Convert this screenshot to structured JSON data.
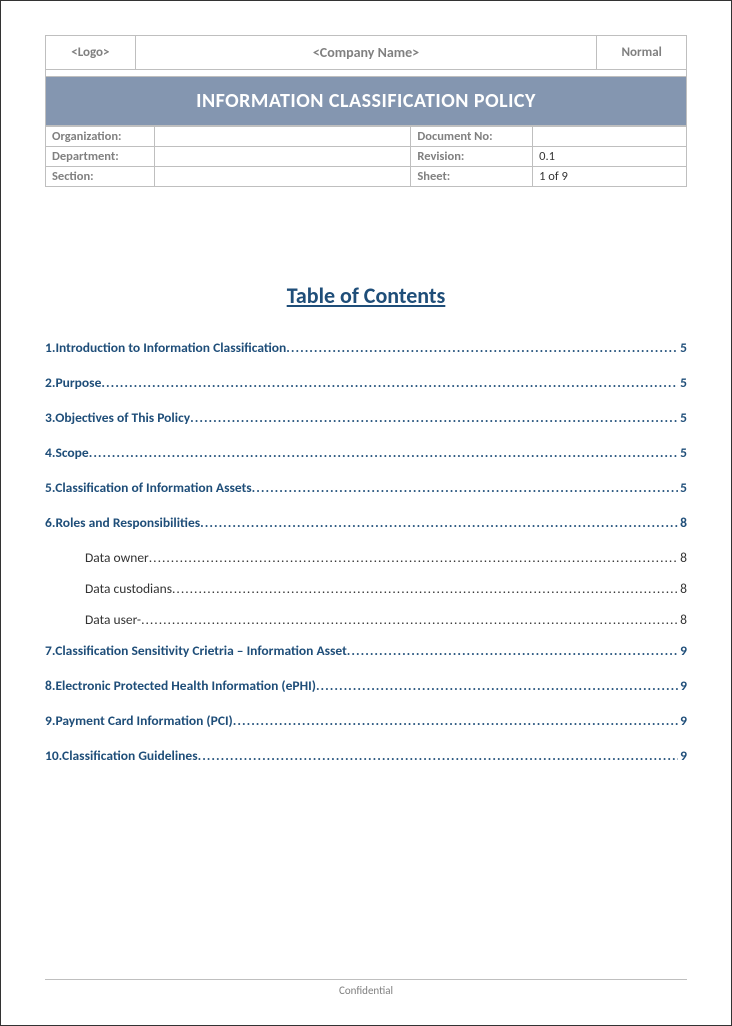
{
  "header": {
    "logo": "<Logo>",
    "company": "<Company Name>",
    "mode": "Normal",
    "title": "INFORMATION CLASSIFICATION POLICY"
  },
  "meta": {
    "org_label": "Organization:",
    "org_value": "",
    "docno_label": "Document No:",
    "docno_value": "",
    "dept_label": "Department:",
    "dept_value": "",
    "rev_label": "Revision:",
    "rev_value": "0.1",
    "section_label": "Section:",
    "section_value": "",
    "sheet_label": "Sheet:",
    "sheet_value": "1 of 9"
  },
  "toc_heading": "Table of Contents",
  "toc": [
    {
      "num": "1.",
      "title": "Introduction to Information Classification",
      "page": "5",
      "sub": false
    },
    {
      "num": "2.",
      "title": "Purpose",
      "page": "5",
      "sub": false
    },
    {
      "num": "3.",
      "title": "Objectives of This Policy",
      "page": "5",
      "sub": false
    },
    {
      "num": "4.",
      "title": "Scope",
      "page": "5",
      "sub": false
    },
    {
      "num": "5.",
      "title": "Classification of Information Assets",
      "page": "5",
      "sub": false
    },
    {
      "num": "6.",
      "title": "Roles and Responsibilities",
      "page": "8",
      "sub": false
    },
    {
      "num": "",
      "title": "Data owner",
      "page": "8",
      "sub": true
    },
    {
      "num": "",
      "title": "Data custodians",
      "page": "8",
      "sub": true
    },
    {
      "num": "",
      "title": "Data user-",
      "page": "8",
      "sub": true
    },
    {
      "num": "7.",
      "title": "Classification Sensitivity  Crietria – Information  Asset",
      "page": "9",
      "sub": false
    },
    {
      "num": "8.",
      "title": "Electronic Protected Health Information (ePHI)",
      "page": "9",
      "sub": false
    },
    {
      "num": "9.",
      "title": "Payment Card Information (PCI)",
      "page": "9",
      "sub": false
    },
    {
      "num": "10.",
      "title": "Classification Guidelines",
      "page": "9",
      "sub": false
    }
  ],
  "footer": "Confidential",
  "colors": {
    "title_bg": "#8496b0",
    "toc_text": "#1f4e79",
    "border": "#bfbfbf",
    "muted": "#808080"
  }
}
